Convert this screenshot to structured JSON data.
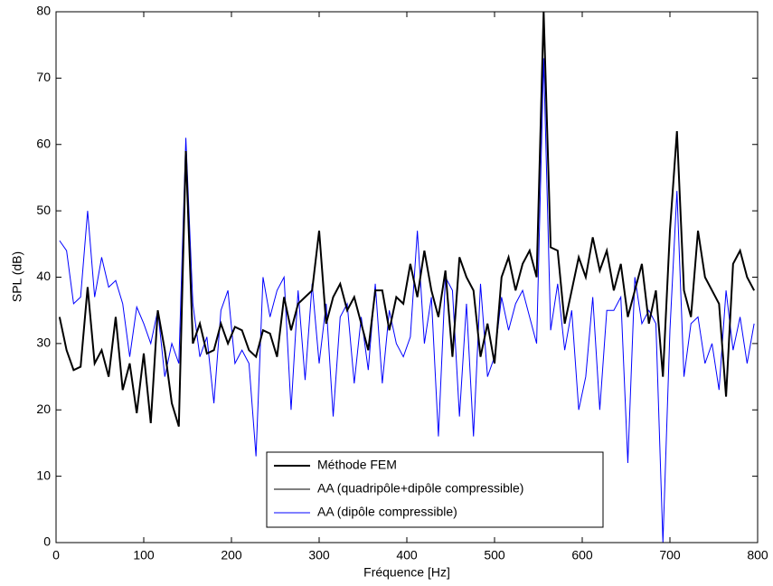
{
  "chart_data": {
    "type": "line",
    "xlabel": "Fréquence [Hz]",
    "ylabel": "SPL (dB)",
    "xlim": [
      0,
      800
    ],
    "ylim": [
      0,
      80
    ],
    "xticks": [
      0,
      100,
      200,
      300,
      400,
      500,
      600,
      700,
      800
    ],
    "yticks": [
      0,
      10,
      20,
      30,
      40,
      50,
      60,
      70,
      80
    ],
    "legend": "lower center",
    "x": [
      4,
      12,
      20,
      28,
      36,
      44,
      52,
      60,
      68,
      76,
      84,
      92,
      100,
      108,
      116,
      124,
      132,
      140,
      148,
      156,
      164,
      172,
      180,
      188,
      196,
      204,
      212,
      220,
      228,
      236,
      244,
      252,
      260,
      268,
      276,
      284,
      292,
      300,
      308,
      316,
      324,
      332,
      340,
      348,
      356,
      364,
      372,
      380,
      388,
      396,
      404,
      412,
      420,
      428,
      436,
      444,
      452,
      460,
      468,
      476,
      484,
      492,
      500,
      508,
      516,
      524,
      532,
      540,
      548,
      556,
      564,
      572,
      580,
      588,
      596,
      604,
      612,
      620,
      628,
      636,
      644,
      652,
      660,
      668,
      676,
      684,
      692,
      700,
      708,
      716,
      724,
      732,
      740,
      748,
      756,
      764,
      772,
      780,
      788,
      796
    ],
    "series": [
      {
        "name": "Méthode FEM",
        "color": "#000000",
        "width": 2,
        "values": [
          34,
          29,
          26,
          26.5,
          38.5,
          27,
          29,
          25,
          34,
          23,
          27,
          19.5,
          28.5,
          18,
          35,
          29,
          21,
          17.5,
          59,
          30,
          33,
          28.5,
          29,
          33,
          30,
          32.5,
          32,
          29,
          28,
          32,
          31.5,
          28,
          37,
          32,
          36,
          37,
          38,
          47,
          33,
          37,
          39,
          35,
          37,
          33,
          29,
          38,
          38,
          32,
          37,
          36,
          42,
          37,
          44,
          38,
          34,
          41,
          28,
          43,
          40,
          38,
          28,
          33,
          27,
          40,
          43,
          38,
          42,
          44,
          40,
          80,
          44.5,
          44,
          33,
          38,
          43,
          40,
          46,
          41,
          44,
          38,
          42,
          34,
          38,
          42,
          33,
          38,
          25,
          47,
          62,
          38,
          34,
          47,
          40,
          38,
          36,
          22,
          42,
          44,
          40,
          38
        ]
      },
      {
        "name": "AA (quadripôle+dipôle compressible)",
        "color": "#000000",
        "width": 1,
        "values": [
          34,
          29,
          26,
          26.5,
          38.5,
          27,
          29,
          25,
          34,
          23,
          27,
          19.5,
          28.5,
          18,
          35,
          29,
          21,
          17.5,
          59,
          30,
          33,
          28.5,
          29,
          33,
          30,
          32.5,
          32,
          29,
          28,
          32,
          31.5,
          28,
          37,
          32,
          36,
          37,
          38,
          47,
          33,
          37,
          39,
          35,
          37,
          33,
          29,
          38,
          38,
          32,
          37,
          36,
          42,
          37,
          44,
          38,
          34,
          41,
          28,
          43,
          40,
          38,
          28,
          33,
          27,
          40,
          43,
          38,
          42,
          44,
          40,
          80,
          44.5,
          44,
          33,
          38,
          43,
          40,
          46,
          41,
          44,
          38,
          42,
          34,
          38,
          42,
          33,
          38,
          25,
          47,
          62,
          38,
          34,
          47,
          40,
          38,
          36,
          22,
          42,
          44,
          40,
          38
        ]
      },
      {
        "name": "AA (dipôle compressible)",
        "color": "#0000ff",
        "width": 1,
        "values": [
          45.5,
          44,
          36,
          37,
          50,
          37,
          43,
          38.5,
          39.5,
          36,
          28,
          35.5,
          33,
          30,
          35,
          25,
          30,
          27,
          61,
          36,
          28,
          31,
          21,
          35,
          38,
          27,
          29,
          27,
          13,
          40,
          34,
          38,
          40,
          20,
          38,
          24.5,
          39,
          27,
          36,
          19,
          34,
          36,
          24,
          34,
          26,
          39,
          24,
          35,
          30,
          28,
          31,
          47,
          30,
          37,
          16,
          40,
          38,
          19,
          36,
          16,
          39,
          25,
          28,
          37,
          32,
          36,
          38,
          34,
          30,
          73,
          32,
          39,
          29,
          35,
          20,
          25,
          37,
          20,
          35,
          35,
          37,
          12,
          40,
          33,
          35,
          33,
          0,
          32,
          53,
          25,
          33,
          34,
          27,
          30,
          23,
          38,
          29,
          34,
          27,
          33
        ]
      }
    ]
  }
}
